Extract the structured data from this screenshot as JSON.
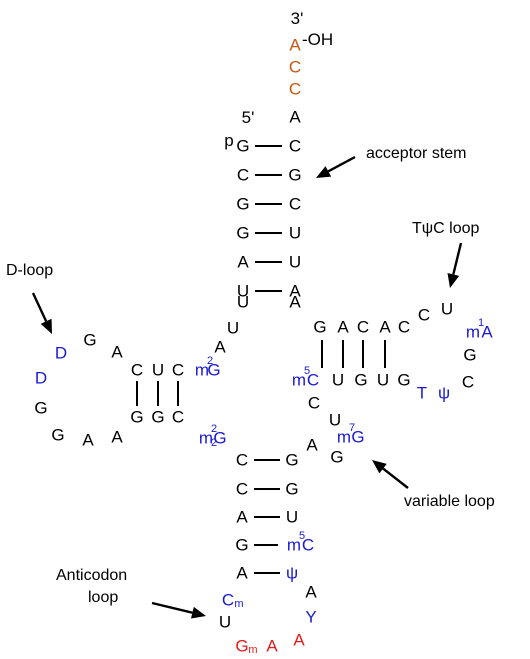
{
  "colors": {
    "base": "#000000",
    "modified": "#1a1ad6",
    "anticodon": "#e01b1b",
    "cca_tail": "#c25a12",
    "terminal": "#1e8a1e"
  },
  "labels": {
    "acceptor_stem": "acceptor stem",
    "tpsic_loop": "TψC loop",
    "d_loop": "D-loop",
    "variable_loop": "variable loop",
    "anticodon_loop_line1": "Anticodon",
    "anticodon_loop_line2": "loop",
    "three_prime": "3'",
    "five_prime": "5'",
    "hydroxyl": "-OH",
    "phosphate": "p"
  },
  "nucleotides": [
    {
      "id": "cca-a",
      "text": "A",
      "type": "cca_tail"
    },
    {
      "id": "cca-c1",
      "text": "C",
      "type": "cca_tail"
    },
    {
      "id": "cca-c2",
      "text": "C",
      "type": "cca_tail"
    },
    {
      "id": "acc-a73",
      "text": "A",
      "type": "base"
    },
    {
      "id": "acc-g1",
      "text": "G",
      "type": "base"
    },
    {
      "id": "acc-c72",
      "text": "C",
      "type": "base"
    },
    {
      "id": "acc-c2",
      "text": "C",
      "type": "base"
    },
    {
      "id": "acc-g71",
      "text": "G",
      "type": "base"
    },
    {
      "id": "acc-g3",
      "text": "G",
      "type": "base"
    },
    {
      "id": "acc-c70",
      "text": "C",
      "type": "base"
    },
    {
      "id": "acc-g4",
      "text": "G",
      "type": "base"
    },
    {
      "id": "acc-u69",
      "text": "U",
      "type": "base"
    },
    {
      "id": "acc-a5",
      "text": "A",
      "type": "base"
    },
    {
      "id": "acc-u68",
      "text": "U",
      "type": "base"
    },
    {
      "id": "acc-u6",
      "text": "U",
      "type": "base"
    },
    {
      "id": "acc-a67",
      "text": "A",
      "type": "base"
    },
    {
      "id": "acc-u7",
      "text": "U",
      "type": "base"
    },
    {
      "id": "acc-a66",
      "text": "A",
      "type": "base"
    },
    {
      "id": "link-u8",
      "text": "U",
      "type": "base"
    },
    {
      "id": "link-a9",
      "text": "A",
      "type": "base"
    },
    {
      "id": "d-c13",
      "text": "C",
      "type": "base"
    },
    {
      "id": "d-u12",
      "text": "U",
      "type": "base"
    },
    {
      "id": "d-c11",
      "text": "C",
      "type": "base"
    },
    {
      "id": "d-m2g10",
      "text": "G",
      "type": "modified"
    },
    {
      "id": "d-a14",
      "text": "A",
      "type": "base"
    },
    {
      "id": "d-g15",
      "text": "G",
      "type": "base"
    },
    {
      "id": "d-d16",
      "text": "D",
      "type": "modified"
    },
    {
      "id": "d-d17",
      "text": "D",
      "type": "modified"
    },
    {
      "id": "d-g18",
      "text": "G",
      "type": "base"
    },
    {
      "id": "d-g19",
      "text": "G",
      "type": "base"
    },
    {
      "id": "d-a21",
      "text": "A",
      "type": "base"
    },
    {
      "id": "d-g22",
      "text": "G",
      "type": "base"
    },
    {
      "id": "d-a23",
      "text": "A",
      "type": "base"
    },
    {
      "id": "d-g24",
      "text": "G",
      "type": "base"
    },
    {
      "id": "d-c25",
      "text": "C",
      "type": "base"
    },
    {
      "id": "ac-m22g26",
      "text": "G",
      "type": "modified"
    },
    {
      "id": "ac-c27",
      "text": "C",
      "type": "base"
    },
    {
      "id": "ac-g43",
      "text": "G",
      "type": "base"
    },
    {
      "id": "ac-c28",
      "text": "C",
      "type": "base"
    },
    {
      "id": "ac-g42",
      "text": "G",
      "type": "base"
    },
    {
      "id": "ac-a29",
      "text": "A",
      "type": "base"
    },
    {
      "id": "ac-u41",
      "text": "U",
      "type": "base"
    },
    {
      "id": "ac-g30",
      "text": "G",
      "type": "base"
    },
    {
      "id": "ac-m5c40",
      "text": "C",
      "type": "modified"
    },
    {
      "id": "ac-a31",
      "text": "A",
      "type": "base"
    },
    {
      "id": "ac-psi39",
      "text": "ψ",
      "type": "modified"
    },
    {
      "id": "ac-cm32",
      "text": "C",
      "type": "modified"
    },
    {
      "id": "ac-u33",
      "text": "U",
      "type": "base"
    },
    {
      "id": "ac-gm34",
      "text": "G",
      "type": "anticodon"
    },
    {
      "id": "ac-a35",
      "text": "A",
      "type": "anticodon"
    },
    {
      "id": "ac-a36",
      "text": "A",
      "type": "anticodon"
    },
    {
      "id": "ac-y37",
      "text": "Y",
      "type": "modified"
    },
    {
      "id": "ac-a38",
      "text": "A",
      "type": "base"
    },
    {
      "id": "var-a44",
      "text": "A",
      "type": "base"
    },
    {
      "id": "var-g45",
      "text": "G",
      "type": "base"
    },
    {
      "id": "var-m7g46",
      "text": "G",
      "type": "modified"
    },
    {
      "id": "var-u47",
      "text": "U",
      "type": "base"
    },
    {
      "id": "var-c48",
      "text": "C",
      "type": "base"
    },
    {
      "id": "t-g53",
      "text": "G",
      "type": "base"
    },
    {
      "id": "t-a52",
      "text": "A",
      "type": "base"
    },
    {
      "id": "t-c51",
      "text": "C",
      "type": "base"
    },
    {
      "id": "t-a50",
      "text": "A",
      "type": "base"
    },
    {
      "id": "t-c49",
      "text": "C",
      "type": "base"
    },
    {
      "id": "t-m5c61",
      "text": "C",
      "type": "modified"
    },
    {
      "id": "t-u62",
      "text": "U",
      "type": "base"
    },
    {
      "id": "t-g63",
      "text": "G",
      "type": "base"
    },
    {
      "id": "t-u64",
      "text": "U",
      "type": "base"
    },
    {
      "id": "t-g65",
      "text": "G",
      "type": "base"
    },
    {
      "id": "t-t54",
      "text": "T",
      "type": "modified"
    },
    {
      "id": "t-psi55",
      "text": "ψ",
      "type": "modified"
    },
    {
      "id": "t-c56",
      "text": "C",
      "type": "base"
    },
    {
      "id": "t-g57",
      "text": "G",
      "type": "base"
    },
    {
      "id": "t-m1a58",
      "text": "A",
      "type": "modified"
    },
    {
      "id": "t-u59",
      "text": "U",
      "type": "base"
    },
    {
      "id": "t-c60",
      "text": "C",
      "type": "base"
    }
  ],
  "mod_marks": [
    {
      "id": "d-m2g10-m",
      "text": "m",
      "type": "modified"
    },
    {
      "id": "d-m2g10-sup",
      "text": "2",
      "type": "modified"
    },
    {
      "id": "ac-m22g26-m",
      "text": "m",
      "type": "modified"
    },
    {
      "id": "ac-m22g26-sup",
      "text": "2",
      "type": "modified"
    },
    {
      "id": "ac-m22g26-sub",
      "text": "2",
      "type": "modified"
    },
    {
      "id": "ac-m5c40-m",
      "text": "m",
      "type": "modified"
    },
    {
      "id": "ac-m5c40-sup",
      "text": "5",
      "type": "modified"
    },
    {
      "id": "ac-cm32-sub",
      "text": "m",
      "type": "modified"
    },
    {
      "id": "ac-gm34-sub",
      "text": "m",
      "type": "anticodon"
    },
    {
      "id": "var-m7g46-m",
      "text": "m",
      "type": "modified"
    },
    {
      "id": "var-m7g46-sup",
      "text": "7",
      "type": "modified"
    },
    {
      "id": "t-m5c61-m",
      "text": "m",
      "type": "modified"
    },
    {
      "id": "t-m5c61-sup",
      "text": "5",
      "type": "modified"
    },
    {
      "id": "t-m1a58-m",
      "text": "m",
      "type": "modified"
    },
    {
      "id": "t-m1a58-sup",
      "text": "1",
      "type": "modified"
    }
  ]
}
